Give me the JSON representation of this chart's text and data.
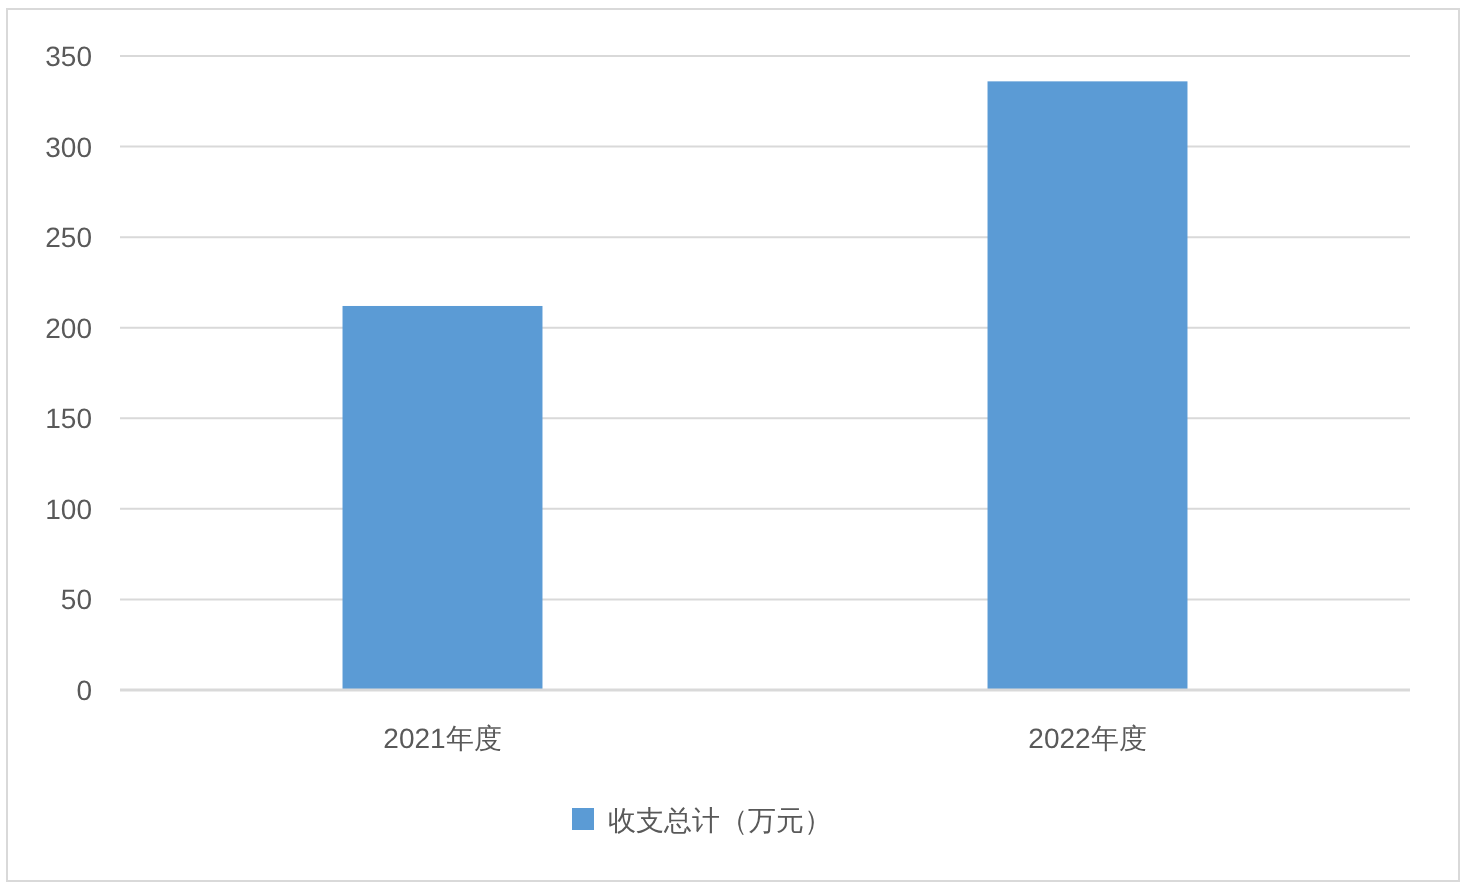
{
  "chart_data": {
    "type": "bar",
    "categories": [
      "2021年度",
      "2022年度"
    ],
    "series": [
      {
        "name": "收支总计（万元）",
        "color": "#5b9bd5",
        "values": [
          212,
          336
        ]
      }
    ],
    "ylim": [
      0,
      350
    ],
    "yticks": [
      0,
      50,
      100,
      150,
      200,
      250,
      300,
      350
    ],
    "grid": "y",
    "legend": "bottom"
  }
}
